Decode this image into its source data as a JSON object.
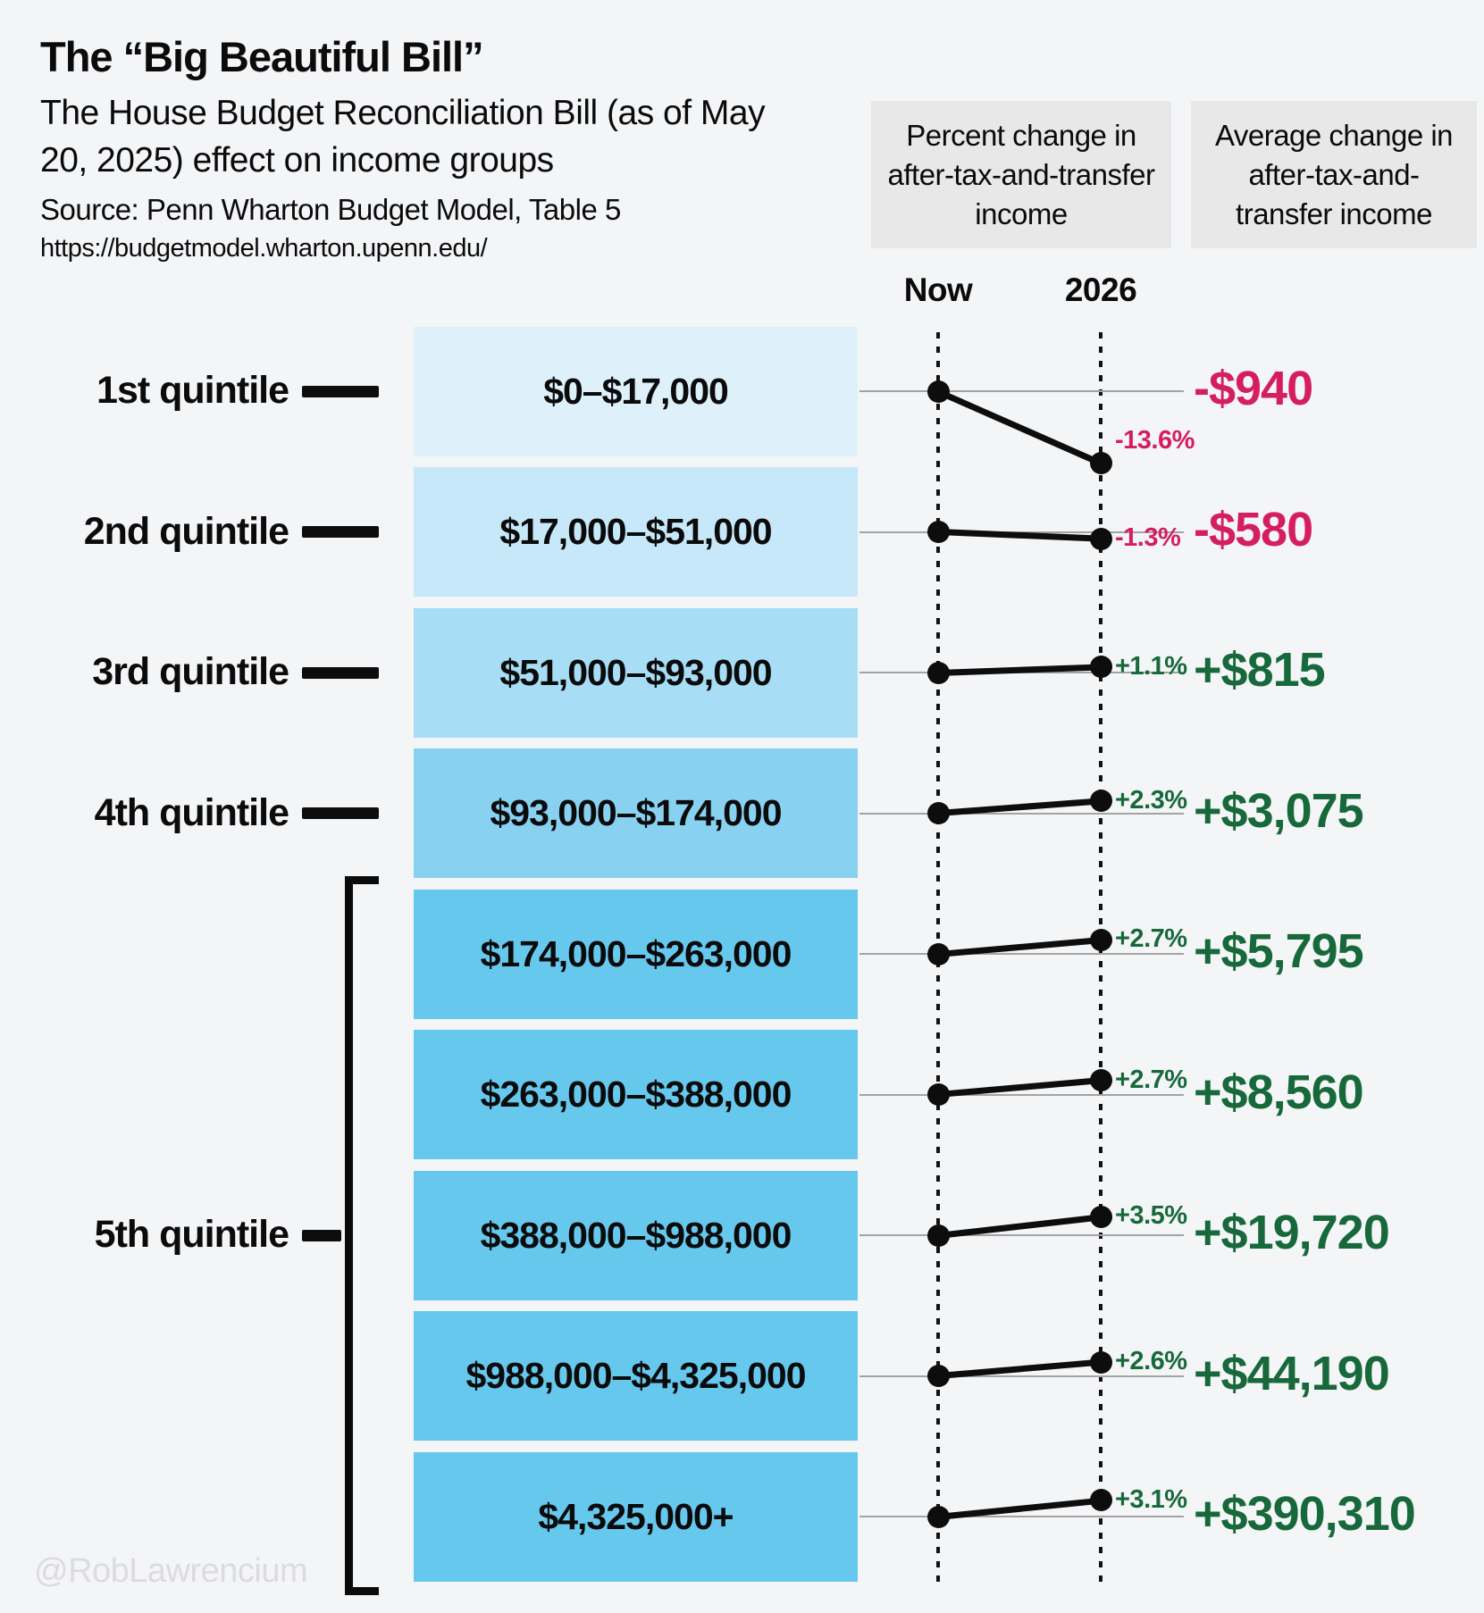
{
  "header": {
    "title": "The “Big Beautiful Bill”",
    "subtitle": "The House Budget Reconciliation Bill (as of May 20, 2025) effect on income groups",
    "source": "Source: Penn Wharton Budget Model, Table 5",
    "url": "https://budgetmodel.wharton.upenn.edu/"
  },
  "columns": {
    "percent_header": "Percent change in after-tax-and-transfer income",
    "average_header": "Average change in after-tax-and-transfer income",
    "now_label": "Now",
    "year_label": "2026"
  },
  "watermark": "@RobLawrencium",
  "colors": {
    "negative": "#d51e5e",
    "positive": "#17693b",
    "header_box": "#e7e8e7",
    "gridline": "#a3a3a3",
    "ink": "#0b0b0c",
    "box_scale": [
      "#def1fb",
      "#c7e8f8",
      "#a7ddf5",
      "#88d1f1",
      "#67c8ee",
      "#67c8ee",
      "#67c8ee",
      "#67c8ee",
      "#67c8ee"
    ]
  },
  "chart_data": {
    "type": "line",
    "subtype": "slopegraph",
    "title": "The “Big Beautiful Bill” — House Budget Reconciliation Bill (as of May 20, 2025) effect on income groups",
    "x_columns": [
      "Now",
      "2026"
    ],
    "legend_position": "none",
    "grid": "per-row horizontal baselines",
    "rows": [
      {
        "quintile": "1st quintile",
        "income_range": "$0–$17,000",
        "percent_change": -13.6,
        "percent_label": "-13.6%",
        "avg_change": -940,
        "avg_change_label": "-$940",
        "direction": "negative"
      },
      {
        "quintile": "2nd quintile",
        "income_range": "$17,000–$51,000",
        "percent_change": -1.3,
        "percent_label": "-1.3%",
        "avg_change": -580,
        "avg_change_label": "-$580",
        "direction": "negative"
      },
      {
        "quintile": "3rd quintile",
        "income_range": "$51,000–$93,000",
        "percent_change": 1.1,
        "percent_label": "+1.1%",
        "avg_change": 815,
        "avg_change_label": "+$815",
        "direction": "positive"
      },
      {
        "quintile": "4th quintile",
        "income_range": "$93,000–$174,000",
        "percent_change": 2.3,
        "percent_label": "+2.3%",
        "avg_change": 3075,
        "avg_change_label": "+$3,075",
        "direction": "positive"
      },
      {
        "quintile": "5th quintile",
        "income_range": "$174,000–$263,000",
        "percent_change": 2.7,
        "percent_label": "+2.7%",
        "avg_change": 5795,
        "avg_change_label": "+$5,795",
        "direction": "positive"
      },
      {
        "quintile": "5th quintile",
        "income_range": "$263,000–$388,000",
        "percent_change": 2.7,
        "percent_label": "+2.7%",
        "avg_change": 8560,
        "avg_change_label": "+$8,560",
        "direction": "positive"
      },
      {
        "quintile": "5th quintile",
        "income_range": "$388,000–$988,000",
        "percent_change": 3.5,
        "percent_label": "+3.5%",
        "avg_change": 19720,
        "avg_change_label": "+$19,720",
        "direction": "positive"
      },
      {
        "quintile": "5th quintile",
        "income_range": "$988,000–$4,325,000",
        "percent_change": 2.6,
        "percent_label": "+2.6%",
        "avg_change": 44190,
        "avg_change_label": "+$44,190",
        "direction": "positive"
      },
      {
        "quintile": "5th quintile",
        "income_range": "$4,325,000+",
        "percent_change": 3.1,
        "percent_label": "+3.1%",
        "avg_change": 390310,
        "avg_change_label": "+$390,310",
        "direction": "positive"
      }
    ],
    "groups": [
      {
        "label": "1st quintile",
        "row_indexes": [
          0
        ]
      },
      {
        "label": "2nd quintile",
        "row_indexes": [
          1
        ]
      },
      {
        "label": "3rd quintile",
        "row_indexes": [
          2
        ]
      },
      {
        "label": "4th quintile",
        "row_indexes": [
          3
        ]
      },
      {
        "label": "5th quintile",
        "row_indexes": [
          4,
          5,
          6,
          7,
          8
        ]
      }
    ]
  }
}
